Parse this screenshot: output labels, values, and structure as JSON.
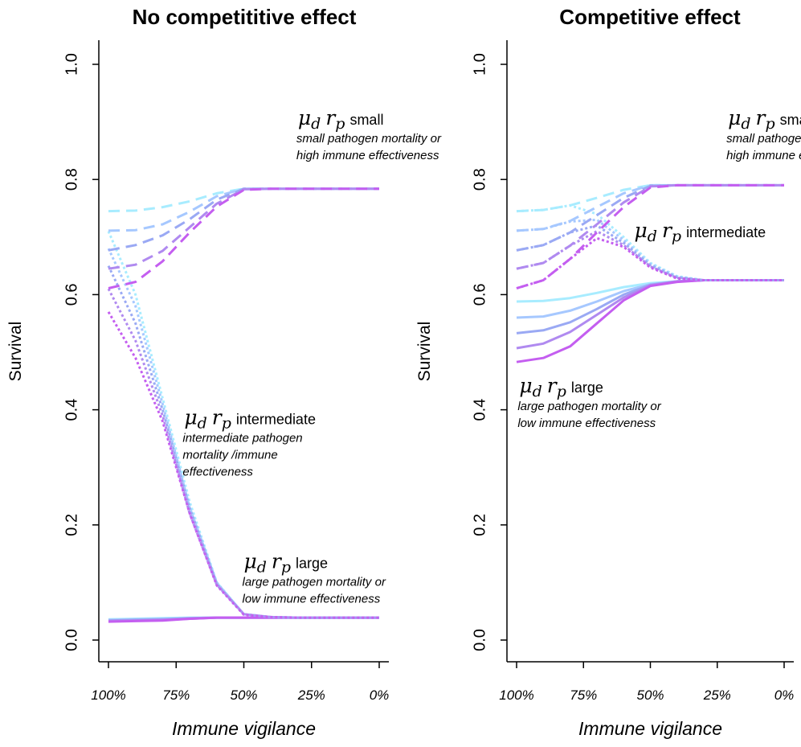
{
  "chart_data": [
    {
      "type": "line",
      "title": "No competititive effect",
      "xlabel": "Immune vigilance",
      "ylabel": "Survival",
      "x": [
        100,
        90,
        80,
        70,
        60,
        50,
        40,
        30,
        20,
        10,
        0
      ],
      "x_tick_labels": [
        "100%",
        "75%",
        "50%",
        "25%",
        "0%"
      ],
      "x_tick_values": [
        100,
        75,
        50,
        25,
        0
      ],
      "y_ticks": [
        "0.0",
        "0.2",
        "0.4",
        "0.6",
        "0.8",
        "1.0"
      ],
      "ylim": [
        0,
        1
      ],
      "xlim": [
        100,
        0
      ],
      "grid": false,
      "series": [
        {
          "group": "small",
          "dash": "dashed",
          "color": "#a8ecff",
          "values": [
            0.745,
            0.746,
            0.752,
            0.762,
            0.776,
            0.784,
            0.784,
            0.784,
            0.784,
            0.784,
            0.784
          ]
        },
        {
          "group": "small",
          "dash": "dashed",
          "color": "#a6c8ff",
          "values": [
            0.711,
            0.712,
            0.722,
            0.744,
            0.771,
            0.784,
            0.784,
            0.784,
            0.784,
            0.784,
            0.784
          ]
        },
        {
          "group": "small",
          "dash": "dashed",
          "color": "#9aa9f4",
          "values": [
            0.677,
            0.686,
            0.703,
            0.731,
            0.765,
            0.784,
            0.784,
            0.784,
            0.784,
            0.784,
            0.784
          ]
        },
        {
          "group": "small",
          "dash": "dashed",
          "color": "#b08af0",
          "values": [
            0.645,
            0.652,
            0.676,
            0.717,
            0.758,
            0.783,
            0.784,
            0.784,
            0.784,
            0.784,
            0.784
          ]
        },
        {
          "group": "small",
          "dash": "dashed",
          "color": "#c45ef0",
          "values": [
            0.611,
            0.622,
            0.658,
            0.708,
            0.753,
            0.782,
            0.784,
            0.784,
            0.784,
            0.784,
            0.784
          ]
        },
        {
          "group": "intermediate",
          "dash": "dotted",
          "color": "#a8ecff",
          "values": [
            0.71,
            0.6,
            0.42,
            0.24,
            0.1,
            0.045,
            0.04,
            0.039,
            0.039,
            0.039,
            0.039
          ]
        },
        {
          "group": "intermediate",
          "dash": "dotted",
          "color": "#a6c8ff",
          "values": [
            0.68,
            0.58,
            0.41,
            0.23,
            0.1,
            0.045,
            0.04,
            0.039,
            0.039,
            0.039,
            0.039
          ]
        },
        {
          "group": "intermediate",
          "dash": "dotted",
          "color": "#9aa9f4",
          "values": [
            0.65,
            0.55,
            0.4,
            0.23,
            0.098,
            0.045,
            0.04,
            0.039,
            0.039,
            0.039,
            0.039
          ]
        },
        {
          "group": "intermediate",
          "dash": "dotted",
          "color": "#b08af0",
          "values": [
            0.61,
            0.52,
            0.39,
            0.22,
            0.096,
            0.045,
            0.04,
            0.039,
            0.039,
            0.039,
            0.039
          ]
        },
        {
          "group": "intermediate",
          "dash": "dotted",
          "color": "#c45ef0",
          "values": [
            0.57,
            0.49,
            0.38,
            0.22,
            0.095,
            0.044,
            0.04,
            0.039,
            0.039,
            0.039,
            0.039
          ]
        },
        {
          "group": "large",
          "dash": "solid",
          "color": "#a8ecff",
          "values": [
            0.036,
            0.037,
            0.038,
            0.039,
            0.039,
            0.039,
            0.039,
            0.039,
            0.039,
            0.039,
            0.039
          ]
        },
        {
          "group": "large",
          "dash": "solid",
          "color": "#a6c8ff",
          "values": [
            0.035,
            0.036,
            0.037,
            0.038,
            0.039,
            0.039,
            0.039,
            0.039,
            0.039,
            0.039,
            0.039
          ]
        },
        {
          "group": "large",
          "dash": "solid",
          "color": "#9aa9f4",
          "values": [
            0.034,
            0.035,
            0.036,
            0.038,
            0.039,
            0.039,
            0.039,
            0.039,
            0.039,
            0.039,
            0.039
          ]
        },
        {
          "group": "large",
          "dash": "solid",
          "color": "#b08af0",
          "values": [
            0.033,
            0.034,
            0.035,
            0.037,
            0.039,
            0.039,
            0.039,
            0.039,
            0.039,
            0.039,
            0.039
          ]
        },
        {
          "group": "large",
          "dash": "solid",
          "color": "#c45ef0",
          "values": [
            0.032,
            0.033,
            0.034,
            0.037,
            0.039,
            0.039,
            0.039,
            0.039,
            0.039,
            0.039,
            0.039
          ]
        }
      ],
      "annotations": [
        {
          "sym_mu": "μ",
          "sym_d": "d",
          "sym_r": "r",
          "sym_p": "p",
          "word": "small",
          "desc": [
            "small pathogen mortality or",
            "high immune effectiveness"
          ],
          "x": 30,
          "y": 0.895
        },
        {
          "sym_mu": "μ",
          "sym_d": "d",
          "sym_r": "r",
          "sym_p": "p",
          "word": "intermediate",
          "desc": [
            "intermediate pathogen",
            "mortality /immune",
            "effectiveness"
          ],
          "x": 72,
          "y": 0.375
        },
        {
          "sym_mu": "μ",
          "sym_d": "d",
          "sym_r": "r",
          "sym_p": "p",
          "word": "large",
          "desc": [
            "large pathogen mortality or",
            "low immune effectiveness"
          ],
          "x": 50,
          "y": 0.125
        }
      ]
    },
    {
      "type": "line",
      "title": "Competitive effect",
      "xlabel": "Immune vigilance",
      "ylabel": "Survival",
      "x": [
        100,
        90,
        80,
        70,
        60,
        50,
        40,
        30,
        20,
        10,
        0
      ],
      "x_tick_labels": [
        "100%",
        "75%",
        "50%",
        "25%",
        "0%"
      ],
      "x_tick_values": [
        100,
        75,
        50,
        25,
        0
      ],
      "y_ticks": [
        "0.0",
        "0.2",
        "0.4",
        "0.6",
        "0.8",
        "1.0"
      ],
      "ylim": [
        0,
        1
      ],
      "xlim": [
        100,
        0
      ],
      "grid": false,
      "series": [
        {
          "group": "small",
          "dash": "dashed",
          "color": "#a8ecff",
          "values": [
            0.745,
            0.747,
            0.755,
            0.768,
            0.782,
            0.79,
            0.79,
            0.79,
            0.79,
            0.79,
            0.79
          ]
        },
        {
          "group": "small",
          "dash": "dashed",
          "color": "#a6c8ff",
          "values": [
            0.711,
            0.714,
            0.728,
            0.752,
            0.776,
            0.79,
            0.79,
            0.79,
            0.79,
            0.79,
            0.79
          ]
        },
        {
          "group": "small",
          "dash": "dashed",
          "color": "#9aa9f4",
          "values": [
            0.677,
            0.686,
            0.708,
            0.738,
            0.768,
            0.789,
            0.79,
            0.79,
            0.79,
            0.79,
            0.79
          ]
        },
        {
          "group": "small",
          "dash": "dashed",
          "color": "#b08af0",
          "values": [
            0.645,
            0.655,
            0.685,
            0.722,
            0.76,
            0.788,
            0.79,
            0.79,
            0.79,
            0.79,
            0.79
          ]
        },
        {
          "group": "small",
          "dash": "dashed",
          "color": "#c45ef0",
          "values": [
            0.611,
            0.625,
            0.662,
            0.708,
            0.752,
            0.786,
            0.79,
            0.79,
            0.79,
            0.79,
            0.79
          ]
        },
        {
          "group": "intermediate",
          "dash": "dotted",
          "color": "#a8ecff",
          "values": [
            0.745,
            0.747,
            0.755,
            0.74,
            0.7,
            0.655,
            0.632,
            0.625,
            0.625,
            0.625,
            0.625
          ]
        },
        {
          "group": "intermediate",
          "dash": "dotted",
          "color": "#a6c8ff",
          "values": [
            0.711,
            0.714,
            0.727,
            0.73,
            0.695,
            0.653,
            0.631,
            0.625,
            0.625,
            0.625,
            0.625
          ]
        },
        {
          "group": "intermediate",
          "dash": "dotted",
          "color": "#9aa9f4",
          "values": [
            0.677,
            0.686,
            0.708,
            0.72,
            0.69,
            0.651,
            0.63,
            0.625,
            0.625,
            0.625,
            0.625
          ]
        },
        {
          "group": "intermediate",
          "dash": "dotted",
          "color": "#b08af0",
          "values": [
            0.645,
            0.655,
            0.685,
            0.71,
            0.686,
            0.649,
            0.629,
            0.625,
            0.625,
            0.625,
            0.625
          ]
        },
        {
          "group": "intermediate",
          "dash": "dotted",
          "color": "#c45ef0",
          "values": [
            0.611,
            0.625,
            0.662,
            0.698,
            0.683,
            0.647,
            0.628,
            0.625,
            0.625,
            0.625,
            0.625
          ]
        },
        {
          "group": "large",
          "dash": "solid",
          "color": "#a8ecff",
          "values": [
            0.588,
            0.589,
            0.594,
            0.603,
            0.613,
            0.62,
            0.623,
            0.625,
            0.625,
            0.625,
            0.625
          ]
        },
        {
          "group": "large",
          "dash": "solid",
          "color": "#a6c8ff",
          "values": [
            0.56,
            0.562,
            0.572,
            0.588,
            0.606,
            0.618,
            0.623,
            0.625,
            0.625,
            0.625,
            0.625
          ]
        },
        {
          "group": "large",
          "dash": "solid",
          "color": "#9aa9f4",
          "values": [
            0.533,
            0.538,
            0.552,
            0.575,
            0.6,
            0.617,
            0.623,
            0.625,
            0.625,
            0.625,
            0.625
          ]
        },
        {
          "group": "large",
          "dash": "solid",
          "color": "#b08af0",
          "values": [
            0.507,
            0.515,
            0.535,
            0.565,
            0.595,
            0.616,
            0.623,
            0.625,
            0.625,
            0.625,
            0.625
          ]
        },
        {
          "group": "large",
          "dash": "solid",
          "color": "#c45ef0",
          "values": [
            0.483,
            0.49,
            0.51,
            0.55,
            0.59,
            0.615,
            0.622,
            0.625,
            0.625,
            0.625,
            0.625
          ]
        }
      ],
      "annotations": [
        {
          "sym_mu": "μ",
          "sym_d": "d",
          "sym_r": "r",
          "sym_p": "p",
          "word": "small",
          "desc": [
            "small pathogen mortality or",
            "high immune effectiveness"
          ],
          "x": 21,
          "y": 0.895
        },
        {
          "sym_mu": "μ",
          "sym_d": "d",
          "sym_r": "r",
          "sym_p": "p",
          "word": "intermediate",
          "desc": [],
          "x": 56,
          "y": 0.7
        },
        {
          "sym_mu": "μ",
          "sym_d": "d",
          "sym_r": "r",
          "sym_p": "p",
          "word": "large",
          "desc": [
            "large pathogen mortality or",
            "low immune effectiveness"
          ],
          "x": 99,
          "y": 0.43
        }
      ]
    }
  ]
}
